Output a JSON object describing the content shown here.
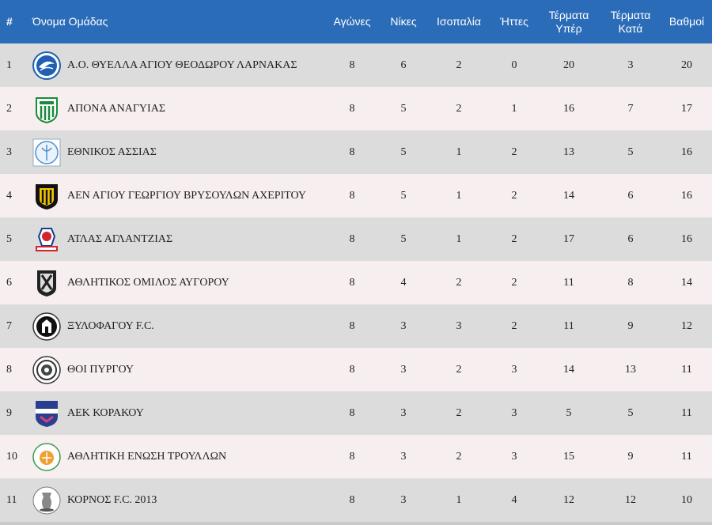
{
  "header": {
    "pos": "#",
    "team": "Όνομα Ομάδας",
    "played": "Αγώνες",
    "wins": "Νίκες",
    "draws": "Ισοπαλία",
    "losses": "Ήττες",
    "goals_for": "Τέρματα Υπέρ",
    "goals_against": "Τέρματα Κατά",
    "points": "Βαθμοί"
  },
  "colors": {
    "header_bg": "#2b6cb8",
    "row_odd": "#dcdcdc",
    "row_even": "#f7eeef"
  },
  "rows": [
    {
      "pos": "1",
      "team": "Α.Ο. ΘΥΕΛΛΑ ΑΓΙΟΥ ΘΕΟΔΩΡΟΥ ΛΑΡΝΑΚΑΣ",
      "logo": "thyella-logo",
      "played": "8",
      "wins": "6",
      "draws": "2",
      "losses": "0",
      "gf": "20",
      "ga": "3",
      "pts": "20"
    },
    {
      "pos": "2",
      "team": "ΑΠΟΝΑ ΑΝΑΓΥΙΑΣ",
      "logo": "apona-logo",
      "played": "8",
      "wins": "5",
      "draws": "2",
      "losses": "1",
      "gf": "16",
      "ga": "7",
      "pts": "17"
    },
    {
      "pos": "3",
      "team": "ΕΘΝΙΚΟΣ ΑΣΣΙΑΣ",
      "logo": "ethnikos-logo",
      "played": "8",
      "wins": "5",
      "draws": "1",
      "losses": "2",
      "gf": "13",
      "ga": "5",
      "pts": "16"
    },
    {
      "pos": "4",
      "team": "ΑΕΝ ΑΓΙΟΥ ΓΕΩΡΓΙΟΥ ΒΡΥΣΟΥΛΩΝ ΑΧΕΡΙΤΟΥ",
      "logo": "aen-logo",
      "played": "8",
      "wins": "5",
      "draws": "1",
      "losses": "2",
      "gf": "14",
      "ga": "6",
      "pts": "16"
    },
    {
      "pos": "5",
      "team": "ΑΤΛΑΣ ΑΓΛΑΝΤΖΙΑΣ",
      "logo": "atlas-logo",
      "played": "8",
      "wins": "5",
      "draws": "1",
      "losses": "2",
      "gf": "17",
      "ga": "6",
      "pts": "16"
    },
    {
      "pos": "6",
      "team": "ΑΘΛΗΤΙΚΟΣ ΟΜΙΛΟΣ ΑΥΓΟΡΟΥ",
      "logo": "avgorou-logo",
      "played": "8",
      "wins": "4",
      "draws": "2",
      "losses": "2",
      "gf": "11",
      "ga": "8",
      "pts": "14"
    },
    {
      "pos": "7",
      "team": "ΞΥΛΟΦΑΓΟΥ F.C.",
      "logo": "xylofagou-logo",
      "played": "8",
      "wins": "3",
      "draws": "3",
      "losses": "2",
      "gf": "11",
      "ga": "9",
      "pts": "12"
    },
    {
      "pos": "8",
      "team": "ΘΟΙ ΠΥΡΓΟΥ",
      "logo": "thoi-logo",
      "played": "8",
      "wins": "3",
      "draws": "2",
      "losses": "3",
      "gf": "14",
      "ga": "13",
      "pts": "11"
    },
    {
      "pos": "9",
      "team": "ΑΕΚ ΚΟΡΑΚΟΥ",
      "logo": "aek-logo",
      "played": "8",
      "wins": "3",
      "draws": "2",
      "losses": "3",
      "gf": "5",
      "ga": "5",
      "pts": "11"
    },
    {
      "pos": "10",
      "team": "ΑΘΛΗΤΙΚΗ ΕΝΩΣΗ ΤΡΟΥΛΛΩΝ",
      "logo": "troullon-logo",
      "played": "8",
      "wins": "3",
      "draws": "2",
      "losses": "3",
      "gf": "15",
      "ga": "9",
      "pts": "11"
    },
    {
      "pos": "11",
      "team": "ΚΟΡΝΟΣ F.C. 2013",
      "logo": "kornos-logo",
      "played": "8",
      "wins": "3",
      "draws": "1",
      "losses": "4",
      "gf": "12",
      "ga": "12",
      "pts": "10"
    }
  ]
}
